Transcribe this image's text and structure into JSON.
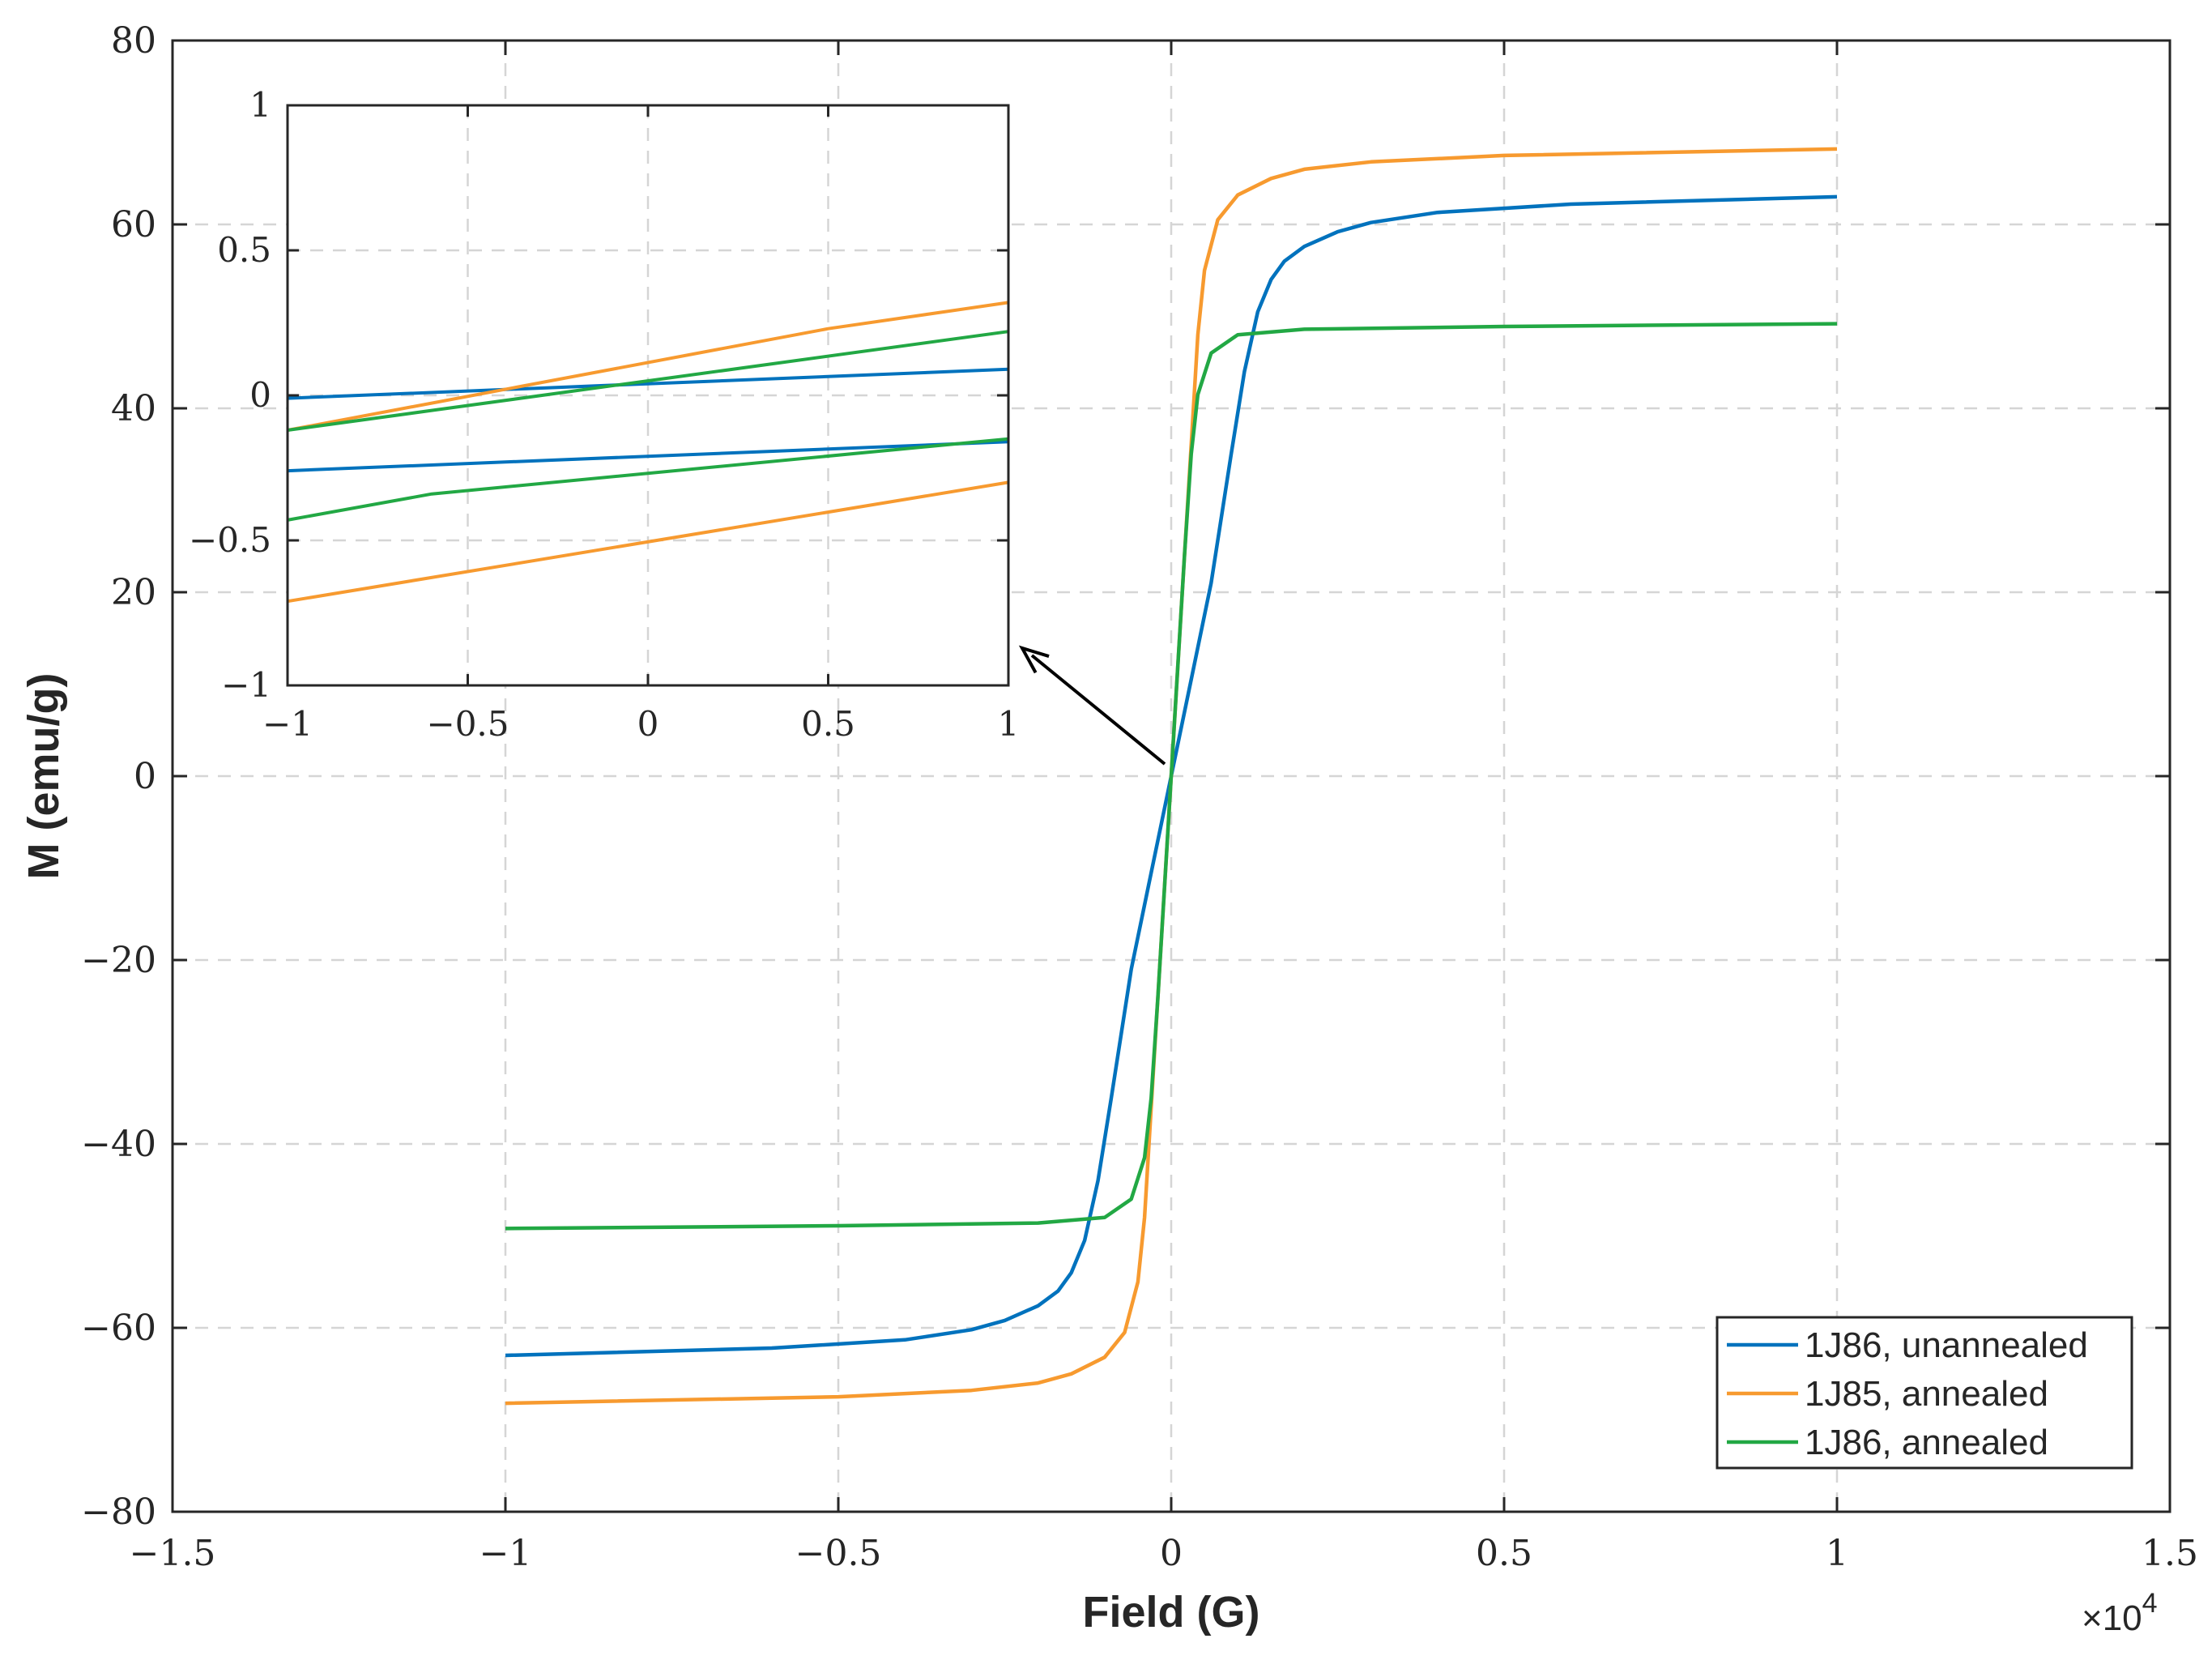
{
  "colors": {
    "series_blue": "#0072BD",
    "series_orange": "#F79A2F",
    "series_green": "#22A844",
    "grid": "#D5D5D5",
    "axis": "#262626"
  },
  "chart_data": [
    {
      "type": "line",
      "xlabel": "Field (G)",
      "ylabel": "M (emu/g)",
      "x_multiplier": "×10",
      "x_multiplier_exponent": "4",
      "xlim": [
        -1.5,
        1.5
      ],
      "ylim": [
        -80,
        80
      ],
      "x_ticks": [
        "−1.5",
        "−1",
        "−0.5",
        "0",
        "0.5",
        "1",
        "1.5"
      ],
      "x_tick_values": [
        -1.5,
        -1,
        -0.5,
        0,
        0.5,
        1,
        1.5
      ],
      "y_ticks": [
        "80",
        "60",
        "40",
        "20",
        "0",
        "−20",
        "−40",
        "−60",
        "−80"
      ],
      "y_tick_values": [
        80,
        60,
        40,
        20,
        0,
        -20,
        -40,
        -60,
        -80
      ],
      "grid": true,
      "legend_position": "bottom-right",
      "series": [
        {
          "name": "1J86, unannealed",
          "color": "#0072BD",
          "x": [
            -1.0,
            -0.6,
            -0.4,
            -0.3,
            -0.25,
            -0.2,
            -0.17,
            -0.15,
            -0.13,
            -0.11,
            -0.09,
            -0.06,
            -0.03,
            0,
            0.03,
            0.06,
            0.09,
            0.11,
            0.13,
            0.15,
            0.17,
            0.2,
            0.25,
            0.3,
            0.4,
            0.6,
            1.0
          ],
          "y": [
            -63,
            -62.2,
            -61.3,
            -60.2,
            -59.2,
            -57.6,
            -56.0,
            -54.0,
            -50.5,
            -44.0,
            -35.0,
            -21.0,
            -10.5,
            0,
            10.5,
            21.0,
            35.0,
            44.0,
            50.5,
            54.0,
            56.0,
            57.6,
            59.2,
            60.2,
            61.3,
            62.2,
            63
          ]
        },
        {
          "name": "1J85, annealed",
          "color": "#F79A2F",
          "x": [
            -1.0,
            -0.5,
            -0.3,
            -0.2,
            -0.15,
            -0.1,
            -0.07,
            -0.05,
            -0.04,
            -0.03,
            -0.02,
            -0.01,
            0,
            0.01,
            0.02,
            0.03,
            0.04,
            0.05,
            0.07,
            0.1,
            0.15,
            0.2,
            0.3,
            0.5,
            1.0
          ],
          "y": [
            -68.2,
            -67.5,
            -66.8,
            -66.0,
            -65.0,
            -63.2,
            -60.5,
            -55.0,
            -48.0,
            -36.0,
            -24.0,
            -12.0,
            0,
            12.0,
            24.0,
            36.0,
            48.0,
            55.0,
            60.5,
            63.2,
            65.0,
            66.0,
            66.8,
            67.5,
            68.2
          ]
        },
        {
          "name": "1J86, annealed",
          "color": "#22A844",
          "x": [
            -1.0,
            -0.5,
            -0.2,
            -0.1,
            -0.06,
            -0.04,
            -0.03,
            -0.02,
            -0.01,
            0,
            0.01,
            0.02,
            0.03,
            0.04,
            0.06,
            0.1,
            0.2,
            0.5,
            1.0
          ],
          "y": [
            -49.2,
            -48.9,
            -48.6,
            -48.0,
            -46.0,
            -41.5,
            -35.0,
            -24.0,
            -12.0,
            0,
            12.0,
            24.0,
            35.0,
            41.5,
            46.0,
            48.0,
            48.6,
            48.9,
            49.2
          ]
        }
      ]
    },
    {
      "type": "line",
      "xlim": [
        -1,
        1
      ],
      "ylim": [
        -1,
        1
      ],
      "x_ticks": [
        "−1",
        "−0.5",
        "0",
        "0.5",
        "1"
      ],
      "x_tick_values": [
        -1,
        -0.5,
        0,
        0.5,
        1
      ],
      "y_ticks": [
        "1",
        "0.5",
        "0",
        "−0.5",
        "−1"
      ],
      "y_tick_values": [
        1,
        0.5,
        0,
        -0.5,
        -1
      ],
      "grid": true,
      "series": [
        {
          "color": "#0072BD",
          "x": [
            -1,
            1
          ],
          "y": [
            -0.01,
            0.09
          ]
        },
        {
          "color": "#0072BD",
          "x": [
            -1,
            1
          ],
          "y": [
            -0.26,
            -0.16
          ]
        },
        {
          "color": "#F79A2F",
          "x": [
            -1,
            0.5,
            1
          ],
          "y": [
            -0.12,
            0.23,
            0.32
          ]
        },
        {
          "color": "#F79A2F",
          "x": [
            -1,
            1
          ],
          "y": [
            -0.71,
            -0.3
          ]
        },
        {
          "color": "#22A844",
          "x": [
            -1,
            1
          ],
          "y": [
            -0.12,
            0.22
          ]
        },
        {
          "color": "#22A844",
          "x": [
            -1,
            -0.6,
            1
          ],
          "y": [
            -0.43,
            -0.34,
            -0.15
          ]
        }
      ]
    }
  ]
}
